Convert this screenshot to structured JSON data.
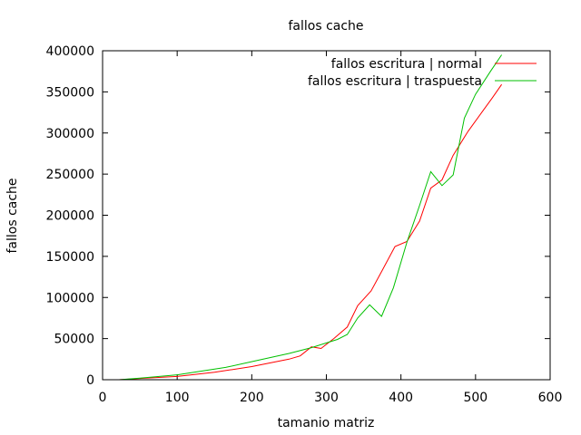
{
  "chart_data": {
    "type": "line",
    "title": "fallos cache",
    "xlabel": "tamanio matriz",
    "ylabel": "fallos cache",
    "xlim": [
      0,
      600
    ],
    "ylim": [
      0,
      400000
    ],
    "xticks": [
      0,
      100,
      200,
      300,
      400,
      500,
      600
    ],
    "yticks": [
      0,
      50000,
      100000,
      150000,
      200000,
      250000,
      300000,
      350000,
      400000
    ],
    "grid": false,
    "legend_position": "top-right",
    "series": [
      {
        "name": "fallos escritura | normal",
        "color": "#ff0000",
        "x": [
          22,
          50,
          100,
          150,
          200,
          250,
          265,
          280,
          293,
          310,
          328,
          342,
          360,
          375,
          392,
          408,
          425,
          440,
          455,
          470,
          490,
          510,
          522,
          535
        ],
        "y": [
          0,
          1500,
          4000,
          9000,
          16000,
          25000,
          29000,
          40000,
          38000,
          50000,
          64000,
          90000,
          108000,
          133000,
          162000,
          168000,
          193000,
          233000,
          243000,
          273000,
          302000,
          327000,
          342000,
          359000
        ]
      },
      {
        "name": "fallos escritura | traspuesta",
        "color": "#00c000",
        "x": [
          22,
          50,
          100,
          165,
          210,
          250,
          280,
          315,
          328,
          342,
          358,
          374,
          390,
          408,
          425,
          440,
          455,
          470,
          485,
          500,
          520,
          535
        ],
        "y": [
          0,
          2000,
          6000,
          15000,
          24000,
          32000,
          39000,
          49000,
          55000,
          75000,
          91000,
          77000,
          112000,
          167000,
          212000,
          253000,
          236000,
          249000,
          318000,
          347000,
          375000,
          395000
        ]
      }
    ]
  }
}
